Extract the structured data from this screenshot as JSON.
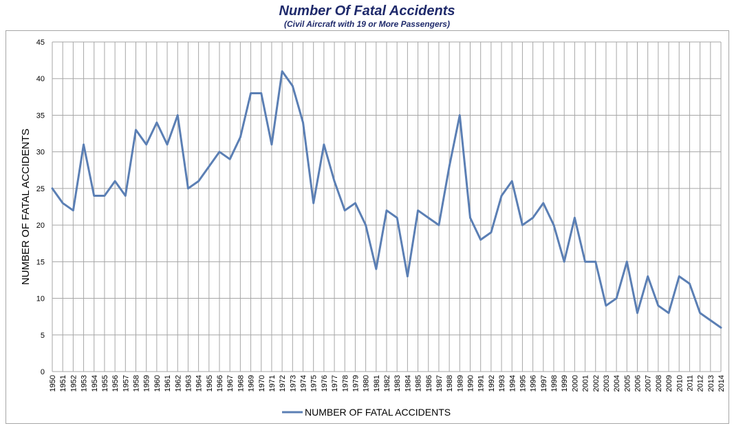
{
  "chart_data": {
    "type": "line",
    "title": "Number Of Fatal Accidents",
    "subtitle": "(Civil Aircraft with 19 or More Passengers)",
    "xlabel": "",
    "ylabel": "NUMBER OF FATAL ACCIDENTS",
    "ylim": [
      0,
      45
    ],
    "yticks": [
      0,
      5,
      10,
      15,
      20,
      25,
      30,
      35,
      40,
      45
    ],
    "grid": true,
    "legend_position": "bottom",
    "categories": [
      "1950",
      "1951",
      "1952",
      "1953",
      "1954",
      "1955",
      "1956",
      "1957",
      "1958",
      "1959",
      "1960",
      "1961",
      "1962",
      "1963",
      "1964",
      "1965",
      "1966",
      "1967",
      "1968",
      "1969",
      "1970",
      "1971",
      "1972",
      "1973",
      "1974",
      "1975",
      "1976",
      "1977",
      "1978",
      "1979",
      "1980",
      "1981",
      "1982",
      "1983",
      "1984",
      "1985",
      "1986",
      "1987",
      "1988",
      "1989",
      "1990",
      "1991",
      "1992",
      "1993",
      "1994",
      "1995",
      "1996",
      "1997",
      "1998",
      "1999",
      "2000",
      "2001",
      "2002",
      "2003",
      "2004",
      "2005",
      "2006",
      "2007",
      "2008",
      "2009",
      "2010",
      "2011",
      "2012",
      "2013",
      "2014"
    ],
    "series": [
      {
        "name": "NUMBER OF FATAL ACCIDENTS",
        "color": "#5b7fb4",
        "values": [
          25,
          23,
          22,
          31,
          24,
          24,
          26,
          24,
          33,
          31,
          34,
          31,
          35,
          25,
          26,
          28,
          30,
          29,
          32,
          38,
          38,
          31,
          41,
          39,
          34,
          23,
          31,
          26,
          22,
          23,
          20,
          14,
          22,
          21,
          13,
          22,
          21,
          20,
          28,
          35,
          21,
          18,
          19,
          24,
          26,
          20,
          21,
          23,
          20,
          15,
          21,
          15,
          15,
          9,
          10,
          15,
          8,
          13,
          9,
          8,
          13,
          12,
          8,
          7,
          6
        ]
      }
    ]
  },
  "colors": {
    "title": "#1f2a6b",
    "grid": "#a6a6a6",
    "line": "#5b7fb4"
  }
}
